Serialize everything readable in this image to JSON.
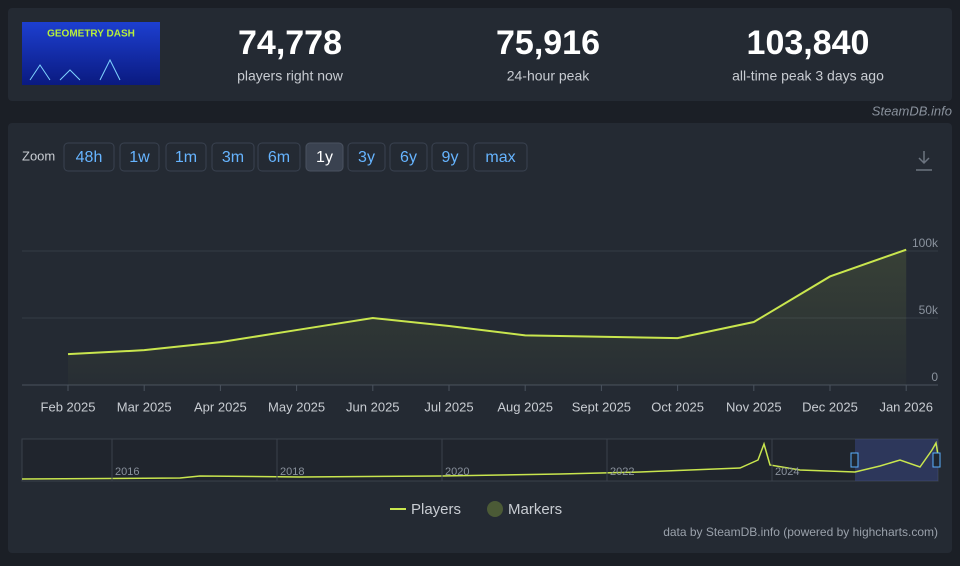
{
  "logo_text": "GEOMETRY DASH",
  "stats": [
    {
      "value": "74,778",
      "label": "players right now"
    },
    {
      "value": "75,916",
      "label": "24-hour peak"
    },
    {
      "value": "103,840",
      "label": "all-time peak 3 days ago"
    }
  ],
  "brand": "SteamDB.info",
  "zoom_label": "Zoom",
  "zoom_buttons": [
    "48h",
    "1w",
    "1m",
    "3m",
    "6m",
    "1y",
    "3y",
    "6y",
    "9y",
    "max"
  ],
  "navigator_labels": [
    "2016",
    "2018",
    "2020",
    "2022",
    "2024"
  ],
  "footer": "data by SteamDB.info (powered by highcharts.com)",
  "chart_data": {
    "type": "line",
    "categories": [
      "Feb 2025",
      "Mar 2025",
      "Apr 2025",
      "May 2025",
      "Jun 2025",
      "Jul 2025",
      "Aug 2025",
      "Sept 2025",
      "Oct 2025",
      "Nov 2025",
      "Dec 2025",
      "Jan 2026"
    ],
    "series": [
      {
        "name": "Players",
        "color": "#c9e64e",
        "values": [
          23000,
          26000,
          32000,
          41000,
          50000,
          44000,
          37000,
          36000,
          35000,
          47000,
          81000,
          101000
        ]
      },
      {
        "name": "Markers",
        "color": "#4b5a36",
        "values": [
          null,
          null,
          null,
          null,
          null,
          null,
          null,
          null,
          null,
          null,
          null,
          null
        ]
      }
    ],
    "ylim": [
      0,
      150000
    ],
    "yticks": [
      0,
      {
        "value": 50000,
        "label": "50k"
      },
      {
        "value": 100000,
        "label": "100k"
      }
    ],
    "grid": true
  }
}
